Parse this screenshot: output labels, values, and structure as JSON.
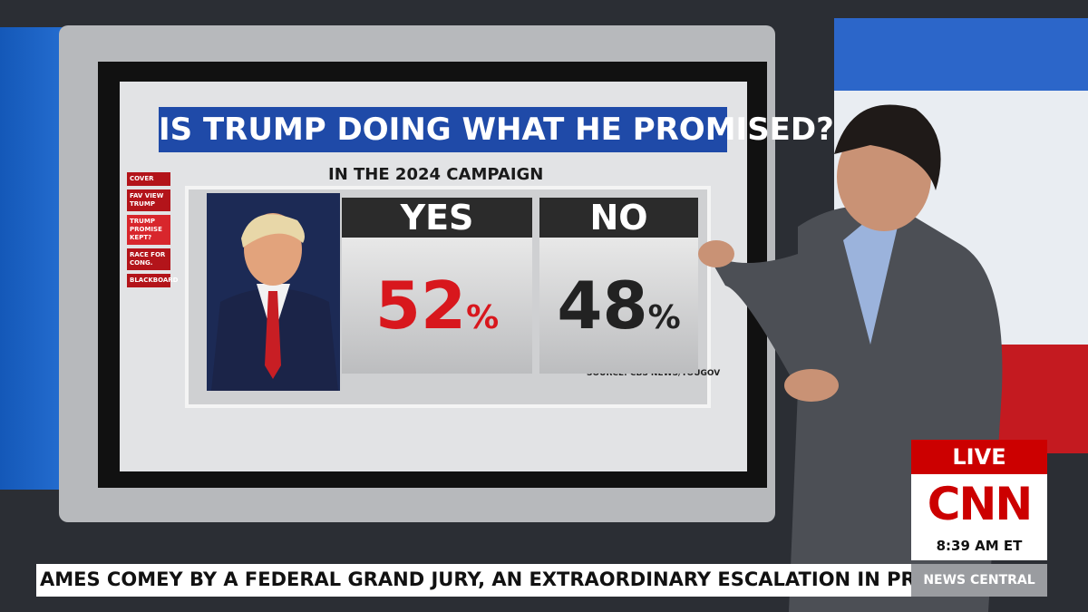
{
  "graphic": {
    "title": "IS TRUMP DOING WHAT HE PROMISED?",
    "subtitle": "IN THE 2024 CAMPAIGN",
    "menu": [
      "COVER",
      "FAV VIEW TRUMP",
      "TRUMP PROMISE KEPT?",
      "RACE FOR CONG.",
      "BLACKBOARD"
    ],
    "results": [
      {
        "label": "YES",
        "value": "52",
        "unit": "%"
      },
      {
        "label": "NO",
        "value": "48",
        "unit": "%"
      }
    ],
    "source": "SOURCE: CBS NEWS/YOUGOV"
  },
  "bug": {
    "live": "LIVE",
    "network": "CNN",
    "time": "8:39 AM ET",
    "show": "NEWS CENTRAL"
  },
  "ticker": {
    "text": "AMES COMEY BY A FEDERAL GRAND JURY, AN EXTRAORDINARY ESCALATION IN PRESI"
  }
}
